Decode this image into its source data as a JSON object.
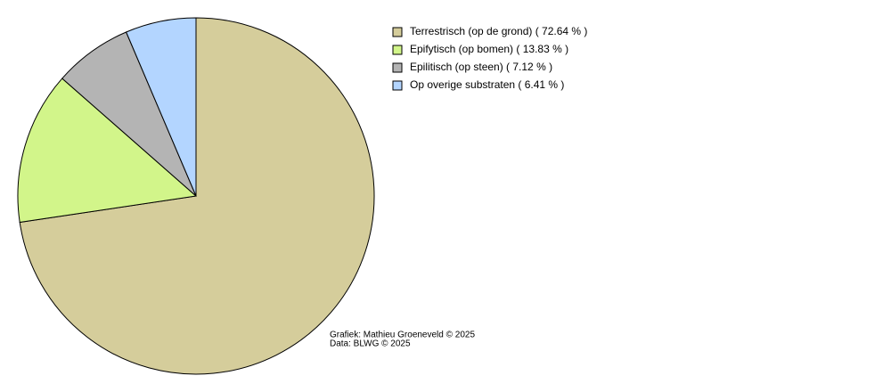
{
  "chart_data": {
    "type": "pie",
    "categories": [
      "Terrestrisch (op de grond) ( 72.64 % )",
      "Epifytisch (op bomen) ( 13.83 % )",
      "Epilitisch (op steen) ( 7.12 % )",
      "Op overige substraten ( 6.41 % )"
    ],
    "values": [
      72.64,
      13.83,
      7.12,
      6.41
    ],
    "colors": [
      "#d5cd9b",
      "#d2f58a",
      "#b4b4b4",
      "#b3d5ff"
    ],
    "credits": [
      "Grafiek: Mathieu Groeneveld © 2025",
      "Data: BLWG © 2025"
    ]
  }
}
